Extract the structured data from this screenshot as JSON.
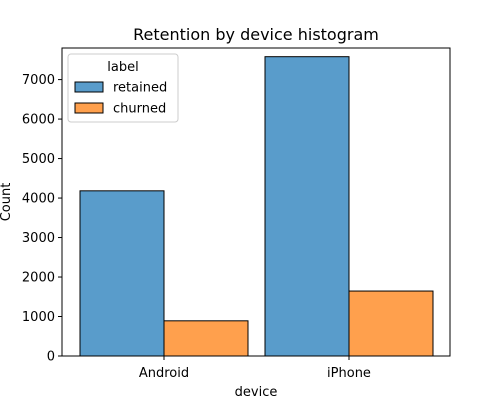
{
  "chart_data": {
    "type": "bar",
    "title": "Retention by device histogram",
    "xlabel": "device",
    "ylabel": "Count",
    "categories": [
      "Android",
      "iPhone"
    ],
    "series": [
      {
        "name": "retained",
        "values": [
          4183,
          7580
        ],
        "color": "#599ccb"
      },
      {
        "name": "churned",
        "values": [
          891,
          1645
        ],
        "color": "#ffa04d"
      }
    ],
    "ylim": [
      0,
      7800
    ],
    "yticks": [
      0,
      1000,
      2000,
      3000,
      4000,
      5000,
      6000,
      7000
    ],
    "legend": {
      "title": "label",
      "position": "top-left"
    },
    "grid": false
  }
}
